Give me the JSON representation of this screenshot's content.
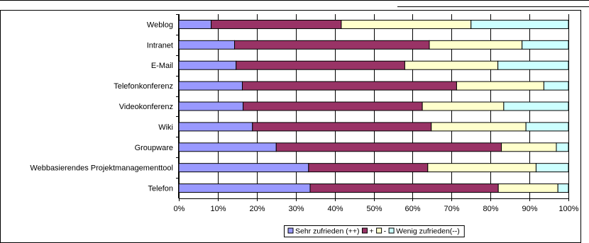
{
  "chart_data": {
    "type": "bar",
    "orientation": "horizontal",
    "stacked": "percent",
    "title": "",
    "xlabel": "",
    "ylabel": "",
    "xlim": [
      0,
      100
    ],
    "x_ticks": [
      "0%",
      "10%",
      "20%",
      "30%",
      "40%",
      "50%",
      "60%",
      "70%",
      "80%",
      "90%",
      "100%"
    ],
    "grid": true,
    "legend_position": "bottom",
    "categories": [
      "Weblog",
      "Intranet",
      "E-Mail",
      "Telefonkonferenz",
      "Videokonferenz",
      "Wiki",
      "Groupware",
      "Webbasierendes Projektmanagementtool",
      "Telefon"
    ],
    "series": [
      {
        "name": "Sehr zufrieden (++)",
        "color": "#9999ff",
        "values": [
          8.3,
          14.3,
          14.7,
          16.3,
          16.5,
          18.9,
          25.0,
          33.3,
          33.7
        ]
      },
      {
        "name": "+",
        "color": "#993366",
        "values": [
          33.4,
          50.0,
          43.3,
          55.0,
          46.0,
          45.9,
          57.8,
          30.6,
          48.3
        ]
      },
      {
        "name": "-",
        "color": "#ffffcc",
        "values": [
          33.3,
          23.8,
          23.9,
          22.4,
          20.9,
          24.3,
          14.1,
          27.8,
          15.3
        ]
      },
      {
        "name": "Wenig zufrieden(--)",
        "color": "#ccffff",
        "values": [
          25.0,
          11.9,
          18.1,
          6.3,
          16.6,
          10.9,
          3.1,
          8.3,
          2.7
        ]
      }
    ]
  }
}
